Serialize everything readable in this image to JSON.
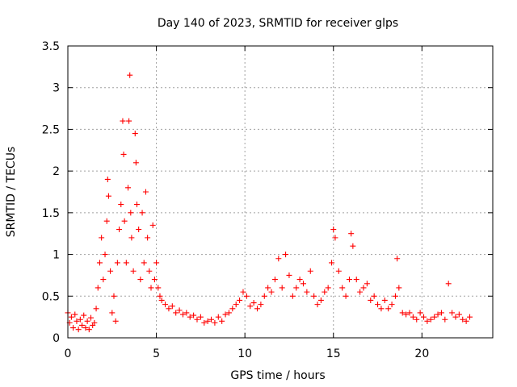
{
  "chart_data": {
    "type": "scatter",
    "title": "Day 140 of 2023, SRMTID for receiver glps",
    "xlabel": "GPS time / hours",
    "ylabel": "SRMTID / TECUs",
    "xlim": [
      0,
      24
    ],
    "ylim": [
      0,
      3.5
    ],
    "xticks": [
      0,
      5,
      10,
      15,
      20
    ],
    "yticks": [
      0,
      0.5,
      1,
      1.5,
      2,
      2.5,
      3,
      3.5
    ],
    "xtick_labels": [
      "0",
      "5",
      "10",
      "15",
      "20"
    ],
    "ytick_labels": [
      "0",
      "0.5",
      "1",
      "1.5",
      "2",
      "2.5",
      "3",
      "3.5"
    ],
    "grid": true,
    "marker": "+",
    "series": [
      {
        "name": "SRMTID",
        "color": "#ff0000",
        "x": [
          0.0,
          0.1,
          0.2,
          0.3,
          0.4,
          0.5,
          0.6,
          0.7,
          0.8,
          0.9,
          1.0,
          1.1,
          1.2,
          1.3,
          1.4,
          1.5,
          1.6,
          1.7,
          1.8,
          1.9,
          2.0,
          2.1,
          2.2,
          2.25,
          2.3,
          2.4,
          2.5,
          2.6,
          2.7,
          2.8,
          2.9,
          3.0,
          3.1,
          3.15,
          3.2,
          3.3,
          3.4,
          3.45,
          3.5,
          3.55,
          3.6,
          3.7,
          3.8,
          3.85,
          3.9,
          4.0,
          4.1,
          4.2,
          4.3,
          4.4,
          4.5,
          4.6,
          4.7,
          4.8,
          4.9,
          5.0,
          5.1,
          5.2,
          5.3,
          5.5,
          5.7,
          5.9,
          6.1,
          6.3,
          6.5,
          6.7,
          6.9,
          7.1,
          7.3,
          7.5,
          7.7,
          7.9,
          8.1,
          8.3,
          8.5,
          8.7,
          8.9,
          9.1,
          9.3,
          9.5,
          9.7,
          9.9,
          10.1,
          10.3,
          10.5,
          10.7,
          10.9,
          11.1,
          11.3,
          11.5,
          11.7,
          11.9,
          12.1,
          12.3,
          12.5,
          12.7,
          12.9,
          13.1,
          13.3,
          13.5,
          13.7,
          13.9,
          14.1,
          14.3,
          14.5,
          14.7,
          14.9,
          15.0,
          15.1,
          15.3,
          15.5,
          15.7,
          15.9,
          16.0,
          16.1,
          16.3,
          16.5,
          16.7,
          16.9,
          17.1,
          17.3,
          17.5,
          17.7,
          17.9,
          18.1,
          18.3,
          18.5,
          18.6,
          18.7,
          18.9,
          19.1,
          19.3,
          19.5,
          19.7,
          19.9,
          20.1,
          20.3,
          20.5,
          20.7,
          20.9,
          21.1,
          21.3,
          21.5,
          21.7,
          21.9,
          22.1,
          22.3,
          22.5,
          22.7
        ],
        "y": [
          0.3,
          0.18,
          0.25,
          0.12,
          0.28,
          0.2,
          0.1,
          0.22,
          0.15,
          0.27,
          0.12,
          0.2,
          0.1,
          0.24,
          0.15,
          0.18,
          0.35,
          0.6,
          0.9,
          1.2,
          0.7,
          1.0,
          1.4,
          1.9,
          1.7,
          0.8,
          0.3,
          0.5,
          0.2,
          0.9,
          1.3,
          1.6,
          2.6,
          2.2,
          1.4,
          0.9,
          1.8,
          2.6,
          3.15,
          1.5,
          1.2,
          0.8,
          2.45,
          2.1,
          1.6,
          1.3,
          0.7,
          1.5,
          0.9,
          1.75,
          1.2,
          0.8,
          0.6,
          1.35,
          0.7,
          0.9,
          0.6,
          0.5,
          0.45,
          0.4,
          0.35,
          0.38,
          0.3,
          0.33,
          0.28,
          0.3,
          0.25,
          0.27,
          0.22,
          0.25,
          0.18,
          0.2,
          0.22,
          0.18,
          0.25,
          0.2,
          0.28,
          0.3,
          0.35,
          0.4,
          0.45,
          0.55,
          0.5,
          0.38,
          0.42,
          0.35,
          0.4,
          0.5,
          0.6,
          0.55,
          0.7,
          0.95,
          0.6,
          1.0,
          0.75,
          0.5,
          0.6,
          0.7,
          0.65,
          0.55,
          0.8,
          0.5,
          0.4,
          0.45,
          0.55,
          0.6,
          0.9,
          1.3,
          1.2,
          0.8,
          0.6,
          0.5,
          0.7,
          1.25,
          1.1,
          0.7,
          0.55,
          0.6,
          0.65,
          0.45,
          0.5,
          0.4,
          0.35,
          0.45,
          0.35,
          0.4,
          0.5,
          0.95,
          0.6,
          0.3,
          0.28,
          0.3,
          0.25,
          0.22,
          0.3,
          0.25,
          0.2,
          0.22,
          0.25,
          0.28,
          0.3,
          0.22,
          0.65,
          0.3,
          0.25,
          0.28,
          0.22,
          0.2,
          0.25
        ]
      }
    ]
  }
}
